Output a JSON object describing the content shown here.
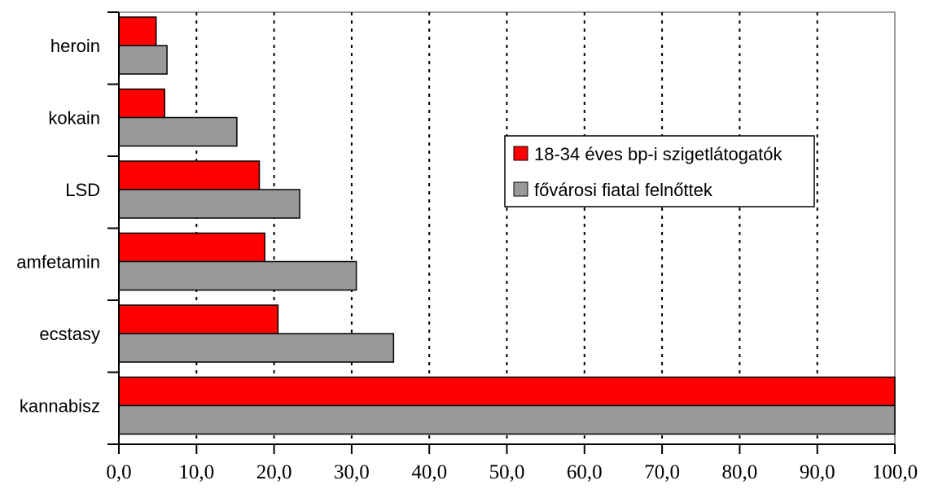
{
  "chart_data": {
    "type": "bar",
    "orientation": "horizontal",
    "categories": [
      "heroin",
      "kokain",
      "LSD",
      "amfetamin",
      "ecstasy",
      "kannabisz"
    ],
    "series": [
      {
        "name": "18-34 éves bp-i szigetlátogatók",
        "color": "#ff0000",
        "values": [
          4.8,
          5.9,
          18.1,
          18.8,
          20.5,
          100.0
        ]
      },
      {
        "name": "fővárosi fiatal felnőttek",
        "color": "#999999",
        "values": [
          6.2,
          15.2,
          23.3,
          30.6,
          35.4,
          100.0
        ]
      }
    ],
    "xlim": [
      0,
      100
    ],
    "xticks": [
      "0,0",
      "10,0",
      "20,0",
      "30,0",
      "40,0",
      "50,0",
      "60,0",
      "70,0",
      "80,0",
      "90,0",
      "100,0"
    ],
    "grid": "vertical dotted",
    "legend_position": "right-center",
    "title": "",
    "xlabel": "",
    "ylabel": ""
  }
}
